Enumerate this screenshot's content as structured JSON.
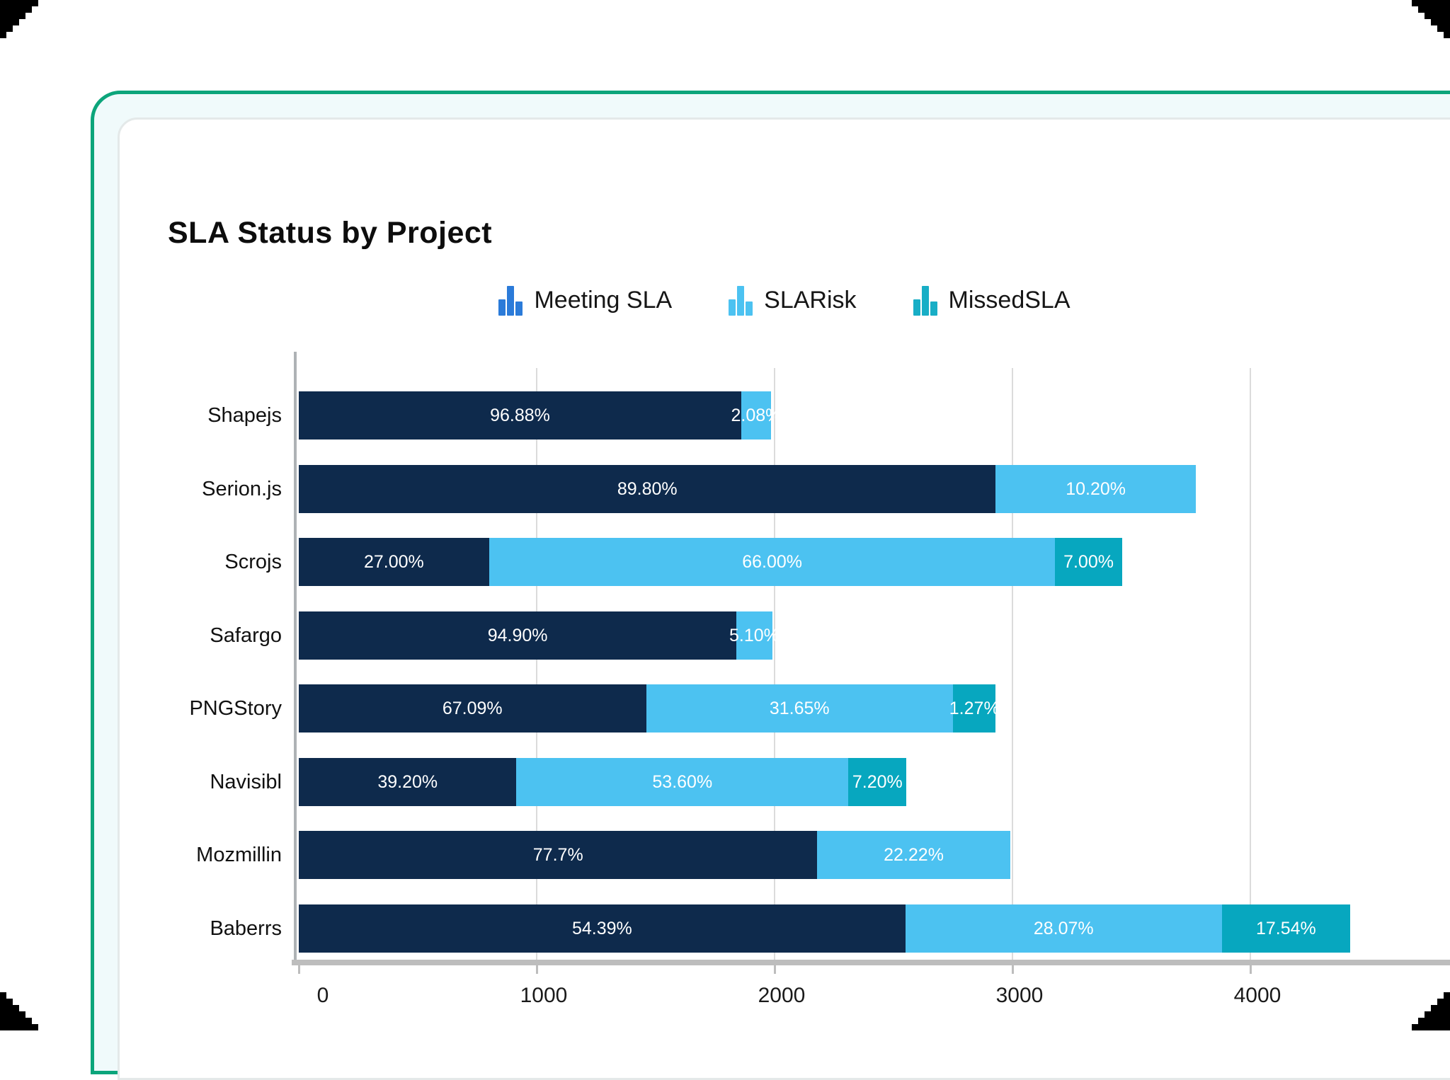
{
  "page": {
    "corner_color": "#000000",
    "frame_border_color": "#0CA57B",
    "frame_fill_color": "#F0FAFB",
    "inner_border_color": "#E4E9E9",
    "inner_fill_color": "#FFFFFF"
  },
  "header": {
    "title": "SLA Status by Project"
  },
  "legend": {
    "items": [
      {
        "label": "Meeting SLA",
        "color": "#2B7BD9"
      },
      {
        "label": "SLARisk",
        "color": "#4CC2F1"
      },
      {
        "label": "MissedSLA",
        "color": "#18AEC6"
      }
    ]
  },
  "chart_data": {
    "type": "bar",
    "orientation": "horizontal-stacked",
    "title": "SLA Status by Project",
    "categories": [
      "Shapejs",
      "Serion.js",
      "Scrojs",
      "Safargo",
      "PNGStory",
      "Navisibl",
      "Mozmillin",
      "Baberrs"
    ],
    "series": [
      {
        "name": "Meeting SLA",
        "color": "#0E2A4C",
        "values": [
          1860,
          2930,
          800,
          1840,
          1460,
          915,
          2180,
          2550
        ],
        "labels": [
          "96.88%",
          "89.80%",
          "27.00%",
          "94.90%",
          "67.09%",
          "39.20%",
          "77.7%",
          "54.39%"
        ]
      },
      {
        "name": "SLARisk",
        "color": "#4CC2F1",
        "values": [
          125,
          840,
          2380,
          150,
          1290,
          1395,
          810,
          1330
        ],
        "labels": [
          "2.08%",
          "10.20%",
          "66.00%",
          "5.10%",
          "31.65%",
          "53.60%",
          "22.22%",
          "28.07%"
        ]
      },
      {
        "name": "MissedSLA",
        "color": "#07A7BF",
        "values": [
          0,
          0,
          280,
          0,
          180,
          245,
          0,
          540
        ],
        "labels": [
          "",
          "",
          "7.00%",
          "",
          "1.27%",
          "7.20%",
          "",
          "17.54%"
        ]
      }
    ],
    "x_ticks": [
      0,
      1000,
      2000,
      3000,
      4000
    ],
    "x_tick_labels": [
      "0",
      "1000",
      "2000",
      "3000",
      "4000"
    ],
    "xlim": [
      0,
      4840
    ],
    "grid": "vertical",
    "legend_position": "top-center"
  }
}
